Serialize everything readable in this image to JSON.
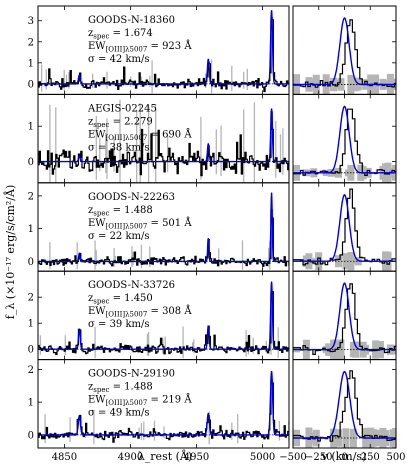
{
  "figure": {
    "ylabel": "f_λ (×10⁻¹⁷ erg/s/cm²/Å)",
    "xlabel_left": "λ_rest (Å)",
    "xlabel_right": "v (km/s)",
    "colors": {
      "data": "#000000",
      "model": "#0000dd",
      "error": "#b5b5b5",
      "zero": "#000000"
    }
  },
  "chart_data": [
    {
      "type": "line",
      "panel": "spectrum",
      "x_range": [
        4830,
        5020
      ],
      "x_ticks": [
        4850,
        4900,
        4950,
        5000
      ],
      "lines_A": [
        4861.3,
        4958.9,
        5006.8
      ],
      "rows": [
        {
          "name": "GOODS-N-18360",
          "zspec": "1.674",
          "ew": "923",
          "sigma": "42",
          "ylim": [
            -0.5,
            3.7
          ],
          "yticks": [
            0,
            1,
            2,
            3
          ],
          "peak": 3.5,
          "ratio_hb": 0.12,
          "noise": 0.2
        },
        {
          "name": "AEGIS-02245",
          "zspec": "2.279",
          "ew": "690",
          "sigma": "38",
          "ylim": [
            -0.6,
            1.9
          ],
          "yticks": [
            0,
            1
          ],
          "peak": 1.5,
          "ratio_hb": 0.1,
          "noise": 0.28
        },
        {
          "name": "GOODS-N-22263",
          "zspec": "1.488",
          "ew": "501",
          "sigma": "22",
          "ylim": [
            -0.3,
            2.4
          ],
          "yticks": [
            0,
            1,
            2
          ],
          "peak": 2.1,
          "ratio_hb": 0.12,
          "noise": 0.1
        },
        {
          "name": "GOODS-N-33726",
          "zspec": "1.450",
          "ew": "308",
          "sigma": "39",
          "ylim": [
            -0.4,
            3.0
          ],
          "yticks": [
            0,
            1,
            2
          ],
          "peak": 2.6,
          "ratio_hb": 0.3,
          "noise": 0.14
        },
        {
          "name": "GOODS-N-29190",
          "zspec": "1.488",
          "ew": "219",
          "sigma": "49",
          "ylim": [
            -0.4,
            2.3
          ],
          "yticks": [
            0,
            1,
            2
          ],
          "peak": 1.95,
          "ratio_hb": 0.3,
          "noise": 0.12
        }
      ]
    },
    {
      "type": "line",
      "panel": "velocity",
      "x_range": [
        -500,
        500
      ],
      "x_ticks": [
        -500,
        -250,
        0,
        250,
        500
      ]
    }
  ]
}
